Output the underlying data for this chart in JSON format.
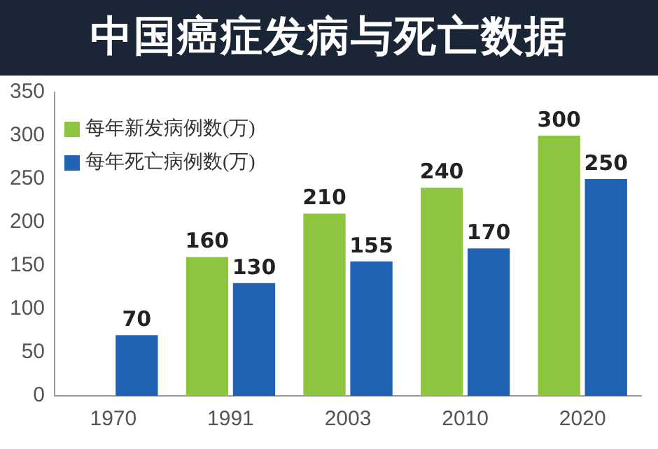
{
  "chart_data": {
    "type": "bar",
    "title": "中国癌症发病与死亡数据",
    "categories": [
      "1970",
      "1991",
      "2003",
      "2010",
      "2020"
    ],
    "series": [
      {
        "name": "每年新发病例数(万)",
        "color": "#8cc63e",
        "values": [
          null,
          160,
          210,
          240,
          300
        ]
      },
      {
        "name": "每年死亡病例数(万)",
        "color": "#2163b3",
        "values": [
          70,
          130,
          155,
          170,
          250
        ]
      }
    ],
    "ylim": [
      0,
      350
    ],
    "yticks": [
      0,
      50,
      100,
      150,
      200,
      250,
      300,
      350
    ],
    "grid": false,
    "legend": "top left",
    "data_labels": true
  }
}
